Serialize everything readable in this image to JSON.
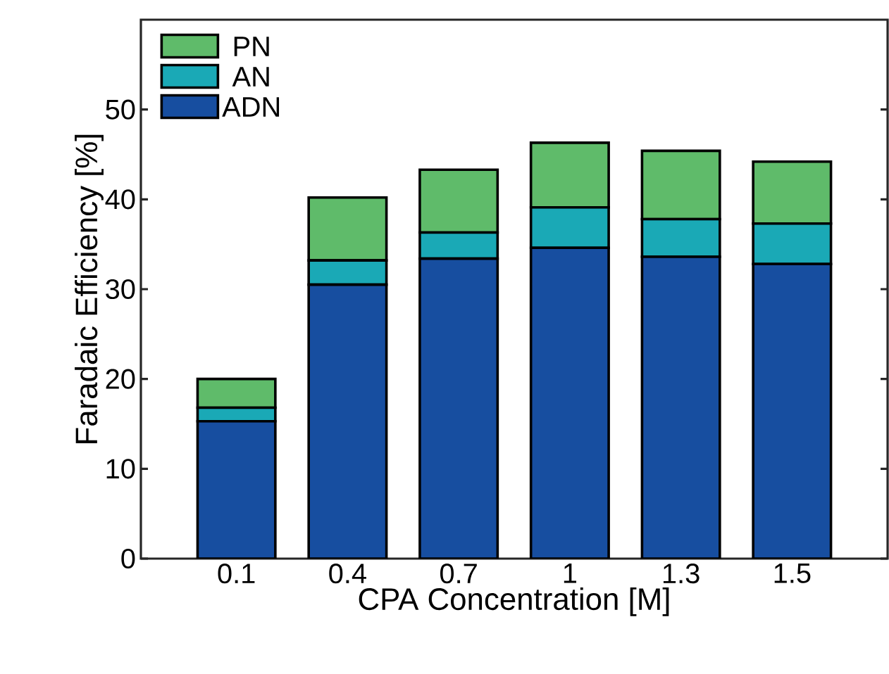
{
  "chart_data": {
    "type": "bar",
    "stacked": true,
    "xlabel": "CPA Concentration [M]",
    "ylabel": "Faradaic Efficiency [%]",
    "categories": [
      "0.1",
      "0.4",
      "0.7",
      "1",
      "1.3",
      "1.5"
    ],
    "series": [
      {
        "name": "ADN",
        "color": "#174ea0",
        "values": [
          15.3,
          30.5,
          33.4,
          34.6,
          33.6,
          32.8
        ]
      },
      {
        "name": "AN",
        "color": "#1aa9b6",
        "values": [
          1.5,
          2.7,
          2.9,
          4.5,
          4.2,
          4.5
        ]
      },
      {
        "name": "PN",
        "color": "#5fbb6a",
        "values": [
          3.2,
          7.0,
          7.0,
          7.2,
          7.6,
          6.9
        ]
      }
    ],
    "ylim": [
      0,
      60
    ],
    "yticks": [
      0,
      10,
      20,
      30,
      40,
      50
    ],
    "legend": "top left",
    "grid": false
  }
}
